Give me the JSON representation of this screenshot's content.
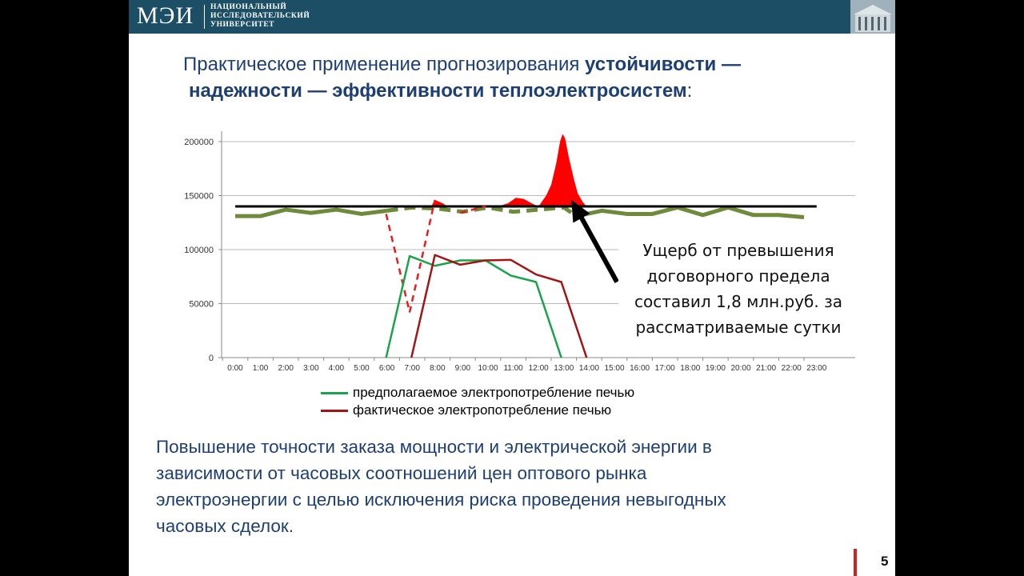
{
  "header": {
    "logo": "МЭИ",
    "university_line1": "НАЦИОНАЛЬНЫЙ",
    "university_line2": "ИССЛЕДОВАТЕЛЬСКИЙ",
    "university_line3": "УНИВЕРСИТЕТ"
  },
  "title": {
    "part1": "Практическое применение прогнозирования ",
    "part2": "устойчивости —",
    "part3": "надежности — эффективности теплоэлектросистем",
    "part4": ":"
  },
  "callout": {
    "line1": "Ущерб от превышения",
    "line2": "договорного предела",
    "line3": "составил 1,8 млн.руб. за",
    "line4": "рассматриваемые сутки"
  },
  "bottom_text": {
    "line1": "Повышение точности заказа мощности и электрической энергии в",
    "line2": "зависимости от часовых соотношений цен оптового рынка",
    "line3": "электроэнергии с целью исключения риска проведения невыгодных",
    "line4": "часовых сделок."
  },
  "page_number": "5",
  "colors": {
    "header_bg": "#1c4f66",
    "title": "#1e3f73",
    "planned": "#1aa34a",
    "actual": "#a31515",
    "baseline": "#6e8a3a",
    "limit": "#000000",
    "overshoot": "#ff0000"
  },
  "chart_data": {
    "type": "line",
    "categories": [
      "0:00",
      "1:00",
      "2:00",
      "3:00",
      "4:00",
      "5:00",
      "6:00",
      "7:00",
      "8:00",
      "9:00",
      "10:00",
      "11:00",
      "12:00",
      "13:00",
      "14:00",
      "15:00",
      "16:00",
      "17:00",
      "18:00",
      "19:00",
      "20:00",
      "21:00",
      "22:00",
      "23:00"
    ],
    "ylim": [
      0,
      200000
    ],
    "yticks": [
      "0",
      "50000",
      "100000",
      "150000",
      "200000"
    ],
    "grid": true,
    "legend_position": "bottom",
    "series": [
      {
        "name": "предполагаемое электропотребление печью",
        "kind": "solid",
        "segments": [
          [
            [
              5.97,
              0
            ],
            [
              6.9,
              94000
            ],
            [
              7.9,
              85000
            ],
            [
              8.9,
              90000
            ],
            [
              9.9,
              90000
            ],
            [
              10.9,
              76000
            ],
            [
              11.9,
              70000
            ],
            [
              12.9,
              0
            ]
          ]
        ]
      },
      {
        "name": "фактическое электропотребление печью",
        "kind": "solid",
        "segments": [
          [
            [
              6.97,
              0
            ],
            [
              7.9,
              95000
            ],
            [
              8.9,
              86000
            ],
            [
              9.9,
              90000
            ],
            [
              10.9,
              90500
            ],
            [
              11.9,
              77000
            ],
            [
              12.9,
              70000
            ],
            [
              13.9,
              0
            ]
          ]
        ]
      },
      {
        "kind": "dashed-actual",
        "segments": [
          [
            [
              5.97,
              133000
            ],
            [
              6.9,
              42000
            ],
            [
              7.9,
              146000
            ]
          ],
          [
            [
              8.9,
              134000
            ],
            [
              9.9,
              140000
            ]
          ]
        ]
      },
      {
        "kind": "baseline",
        "segments": [
          [
            [
              0,
              131000
            ],
            [
              1,
              131000
            ],
            [
              2,
              137000
            ],
            [
              3,
              134000
            ],
            [
              4,
              137000
            ],
            [
              5,
              133000
            ],
            [
              6,
              136000
            ]
          ],
          [
            [
              13.5,
              131000
            ],
            [
              14.5,
              136000
            ],
            [
              15.5,
              133000
            ],
            [
              16.5,
              133000
            ],
            [
              17.5,
              139000
            ],
            [
              18.5,
              132000
            ],
            [
              19.5,
              139000
            ],
            [
              20.5,
              132000
            ],
            [
              21.5,
              132000
            ],
            [
              22.5,
              130000
            ]
          ]
        ]
      },
      {
        "kind": "baseline-dashed",
        "segments": [
          [
            [
              6,
              136000
            ],
            [
              7,
              139000
            ],
            [
              8,
              138000
            ],
            [
              9,
              135000
            ],
            [
              10,
              139000
            ],
            [
              11,
              135000
            ],
            [
              12,
              137000
            ],
            [
              13,
              139000
            ],
            [
              13.5,
              131000
            ]
          ]
        ]
      },
      {
        "kind": "limit",
        "segments": [
          [
            [
              0,
              140000
            ],
            [
              23,
              140000
            ]
          ]
        ]
      }
    ],
    "overshoot_regions": [
      [
        [
          7.75,
          140000
        ],
        [
          7.9,
          146000
        ],
        [
          8.2,
          143000
        ],
        [
          8.4,
          140000
        ]
      ],
      [
        [
          10.4,
          140000
        ],
        [
          10.8,
          143000
        ],
        [
          11.1,
          148000
        ],
        [
          11.4,
          147000
        ],
        [
          11.8,
          142000
        ],
        [
          12.0,
          140000
        ]
      ],
      [
        [
          12.0,
          140000
        ],
        [
          12.3,
          150000
        ],
        [
          12.5,
          160000
        ],
        [
          12.7,
          180000
        ],
        [
          12.85,
          200000
        ],
        [
          12.95,
          207000
        ],
        [
          13.05,
          203000
        ],
        [
          13.2,
          185000
        ],
        [
          13.4,
          165000
        ],
        [
          13.55,
          152000
        ],
        [
          13.75,
          144000
        ],
        [
          13.9,
          140000
        ]
      ]
    ],
    "arrow": {
      "from": [
        15.1,
        70000
      ],
      "to": [
        13.3,
        146000
      ]
    }
  }
}
